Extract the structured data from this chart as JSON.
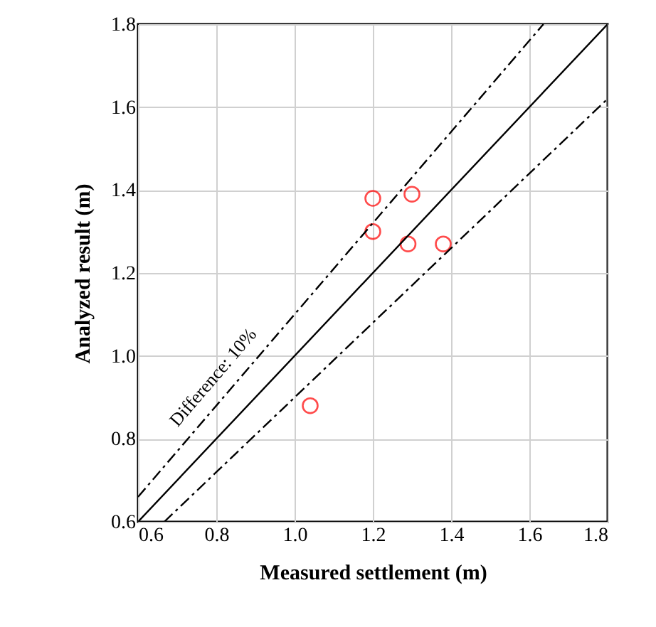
{
  "chart_data": {
    "type": "scatter",
    "xlabel": "Measured settlement  (m)",
    "ylabel": "Analyzed result (m)",
    "xlim": [
      0.6,
      1.8
    ],
    "xticks": [
      0.6,
      0.8,
      {
        "value": 1,
        "label": "1.0"
      },
      1.2,
      1.4,
      1.6,
      1.8
    ],
    "ylim": [
      0.6,
      1.8
    ],
    "yticks": [
      0.6,
      0.8,
      {
        "value": 1,
        "label": "1.0"
      },
      1.2,
      1.4,
      1.6,
      1.8
    ],
    "grid": true,
    "series": [
      {
        "marker": "circle",
        "color": "#ff0000",
        "x": [
          1.04,
          1.2,
          1.2,
          1.3,
          1.29,
          1.38
        ],
        "values": [
          0.88,
          1.38,
          1.3,
          1.39,
          1.27,
          1.27
        ]
      },
      {
        "type": "line",
        "color": "#000000",
        "line_style": "solid",
        "marker": "none",
        "x": [
          0.6,
          1.8
        ],
        "values": [
          0.6,
          1.8
        ]
      },
      {
        "type": "line",
        "color": "#000000",
        "line_style": "dashed",
        "marker": "none",
        "x": [
          0.6,
          1.636
        ],
        "values": [
          0.66,
          1.8
        ]
      },
      {
        "type": "line",
        "color": "#000000",
        "line_style": "dashed",
        "marker": "none",
        "x": [
          0.667,
          1.8
        ],
        "values": [
          0.6,
          1.62
        ]
      }
    ],
    "annotations": [
      "Difference: 10%"
    ]
  }
}
